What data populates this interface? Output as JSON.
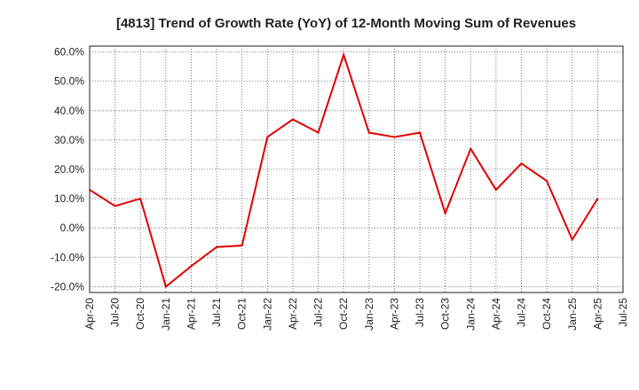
{
  "chart_data": {
    "type": "line",
    "title": "[4813]  Trend of Growth Rate (YoY) of 12-Month Moving Sum of Revenues",
    "xlabel": "",
    "ylabel": "",
    "x_ticks": [
      "Apr-20",
      "Jul-20",
      "Oct-20",
      "Jan-21",
      "Apr-21",
      "Jul-21",
      "Oct-21",
      "Jan-22",
      "Apr-22",
      "Jul-22",
      "Oct-22",
      "Jan-23",
      "Apr-23",
      "Jul-23",
      "Oct-23",
      "Jan-24",
      "Apr-24",
      "Jul-24",
      "Oct-24",
      "Jan-25",
      "Apr-25",
      "Jul-25"
    ],
    "y_ticks": [
      "-20.0%",
      "-10.0%",
      "0.0%",
      "10.0%",
      "20.0%",
      "30.0%",
      "40.0%",
      "50.0%",
      "60.0%"
    ],
    "ylim": [
      -22,
      62
    ],
    "grid": true,
    "line_color": "#e00000",
    "series": [
      {
        "x": [
          "Apr-20",
          "Jul-20",
          "Oct-20",
          "Jan-21",
          "Apr-21",
          "Jul-21",
          "Oct-21",
          "Jan-22",
          "Apr-22",
          "Jul-22",
          "Oct-22",
          "Jan-23",
          "Apr-23",
          "Jul-23",
          "Oct-23",
          "Jan-24",
          "Apr-24",
          "Jul-24",
          "Oct-24",
          "Jan-25",
          "Apr-25"
        ],
        "values": [
          13.0,
          7.5,
          10.0,
          -20.0,
          -13.0,
          -6.5,
          -6.0,
          31.0,
          37.0,
          32.5,
          59.0,
          32.5,
          31.0,
          32.5,
          5.0,
          27.0,
          13.0,
          22.0,
          16.0,
          -4.0,
          10.0
        ]
      }
    ]
  }
}
